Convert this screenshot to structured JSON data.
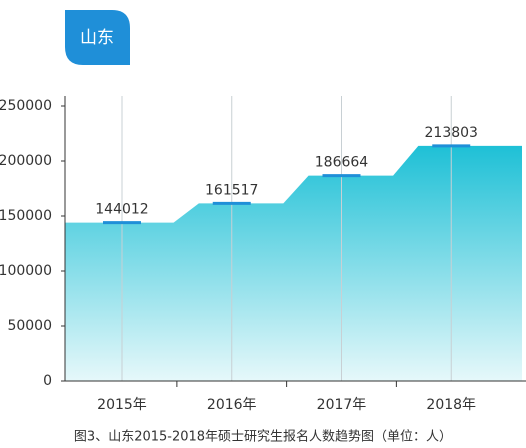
{
  "badge": "山东",
  "chart_data": {
    "type": "area",
    "title": "图3、山东2015-2018年硕士研究生报名人数趋势图（单位：人）",
    "categories": [
      "2015年",
      "2016年",
      "2017年",
      "2018年"
    ],
    "values": [
      144012,
      161517,
      186664,
      213803
    ],
    "color": "#1ec0d6",
    "ylim": [
      0,
      250000
    ],
    "yticks": [
      0,
      50000,
      100000,
      150000,
      200000,
      250000
    ]
  }
}
